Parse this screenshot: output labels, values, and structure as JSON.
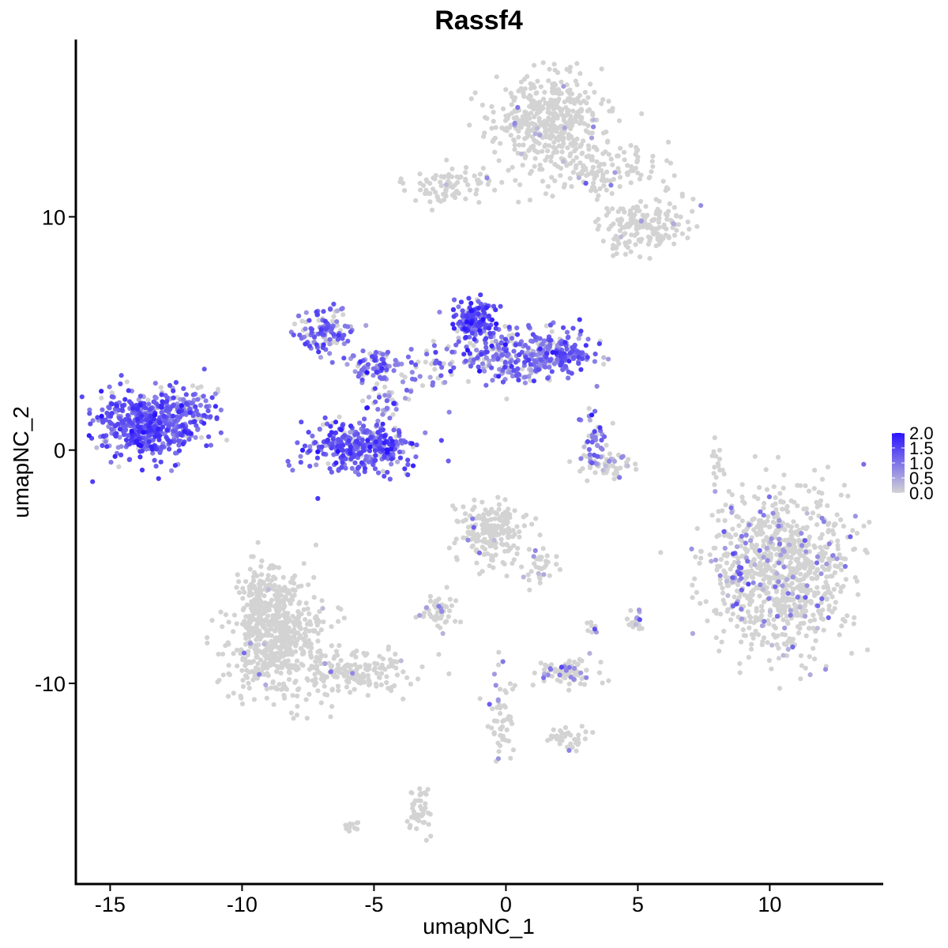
{
  "chart_data": {
    "type": "scatter",
    "title": "Rassf4",
    "xlabel": "umapNC_1",
    "ylabel": "umapNC_2",
    "xlim": [
      -16.3,
      14.3
    ],
    "ylim": [
      -18.6,
      17.6
    ],
    "xticks": [
      -15,
      -10,
      -5,
      0,
      5,
      10
    ],
    "xtick_labels": [
      "-15",
      "-10",
      "-5",
      "0",
      "5",
      "10"
    ],
    "yticks": [
      -10,
      0,
      10
    ],
    "ytick_labels": [
      "-10",
      "0",
      "10"
    ],
    "grid": false,
    "legend": {
      "position": "right",
      "min": 0,
      "max": 2,
      "ticks": [
        "0.0",
        "0.5",
        "1.0",
        "1.5",
        "2.0"
      ],
      "low_color": "#d3d3d3",
      "high_color": "#2a14ff"
    },
    "colors": {
      "low": "#d3d3d3",
      "high": "#2a14ff",
      "axis": "#000000"
    },
    "clusters": [
      {
        "x": -13.5,
        "y": 1.1,
        "sx": 1.0,
        "sy": 0.75,
        "n": 520,
        "expr_mean": 1.25,
        "expr_frac": 0.92
      },
      {
        "x": -12.1,
        "y": 1.8,
        "sx": 0.5,
        "sy": 0.6,
        "n": 60,
        "expr_mean": 1.0,
        "expr_frac": 0.85
      },
      {
        "x": -5.5,
        "y": 0.2,
        "sx": 1.0,
        "sy": 0.55,
        "n": 360,
        "expr_mean": 1.2,
        "expr_frac": 0.88
      },
      {
        "x": -6.9,
        "y": 5.2,
        "sx": 0.6,
        "sy": 0.45,
        "n": 120,
        "expr_mean": 1.0,
        "expr_frac": 0.8
      },
      {
        "x": -5.0,
        "y": 3.7,
        "sx": 0.5,
        "sy": 0.35,
        "n": 80,
        "expr_mean": 1.0,
        "expr_frac": 0.8
      },
      {
        "x": -4.6,
        "y": 2.0,
        "sx": 0.3,
        "sy": 0.5,
        "n": 35,
        "expr_mean": 1.0,
        "expr_frac": 0.8
      },
      {
        "x": -1.2,
        "y": 5.6,
        "sx": 0.35,
        "sy": 0.45,
        "n": 160,
        "expr_mean": 1.35,
        "expr_frac": 0.92
      },
      {
        "x": 0.4,
        "y": 4.1,
        "sx": 1.3,
        "sy": 0.6,
        "n": 280,
        "expr_mean": 1.0,
        "expr_frac": 0.78
      },
      {
        "x": 2.1,
        "y": 4.1,
        "sx": 0.5,
        "sy": 0.4,
        "n": 90,
        "expr_mean": 1.2,
        "expr_frac": 0.9
      },
      {
        "x": -3.0,
        "y": 3.5,
        "sx": 0.6,
        "sy": 0.8,
        "n": 45,
        "expr_mean": 0.9,
        "expr_frac": 0.6
      },
      {
        "x": 3.3,
        "y": 0.4,
        "sx": 0.25,
        "sy": 0.55,
        "n": 45,
        "expr_mean": 0.9,
        "expr_frac": 0.7
      },
      {
        "x": 3.8,
        "y": -0.6,
        "sx": 0.5,
        "sy": 0.3,
        "n": 55,
        "expr_mean": 0.3,
        "expr_frac": 0.25
      },
      {
        "x": 1.6,
        "y": 14.2,
        "sx": 1.0,
        "sy": 0.9,
        "n": 420,
        "expr_mean": 0.5,
        "expr_frac": 0.04
      },
      {
        "x": 3.5,
        "y": 12.1,
        "sx": 1.1,
        "sy": 0.6,
        "n": 150,
        "expr_mean": 0.5,
        "expr_frac": 0.03
      },
      {
        "x": -2.0,
        "y": 11.4,
        "sx": 0.9,
        "sy": 0.4,
        "n": 90,
        "expr_mean": 0.5,
        "expr_frac": 0.04
      },
      {
        "x": 5.2,
        "y": 9.6,
        "sx": 0.8,
        "sy": 0.6,
        "n": 180,
        "expr_mean": 0.5,
        "expr_frac": 0.03
      },
      {
        "x": 10.5,
        "y": -5.2,
        "sx": 1.3,
        "sy": 1.7,
        "n": 900,
        "expr_mean": 0.7,
        "expr_frac": 0.1
      },
      {
        "x": 8.6,
        "y": -5.5,
        "sx": 0.4,
        "sy": 0.6,
        "n": 40,
        "expr_mean": 0.9,
        "expr_frac": 0.6
      },
      {
        "x": -8.7,
        "y": -8.3,
        "sx": 1.0,
        "sy": 1.2,
        "n": 520,
        "expr_mean": 0.5,
        "expr_frac": 0.02
      },
      {
        "x": -9.1,
        "y": -6.2,
        "sx": 0.5,
        "sy": 0.7,
        "n": 150,
        "expr_mean": 0.5,
        "expr_frac": 0.02
      },
      {
        "x": -5.8,
        "y": -9.6,
        "sx": 1.0,
        "sy": 0.4,
        "n": 150,
        "expr_mean": 0.5,
        "expr_frac": 0.02
      },
      {
        "x": -0.5,
        "y": -3.6,
        "sx": 0.6,
        "sy": 0.7,
        "n": 190,
        "expr_mean": 0.6,
        "expr_frac": 0.05
      },
      {
        "x": 1.3,
        "y": -4.9,
        "sx": 0.3,
        "sy": 0.5,
        "n": 35,
        "expr_mean": 0.6,
        "expr_frac": 0.05
      },
      {
        "x": -2.6,
        "y": -6.9,
        "sx": 0.4,
        "sy": 0.35,
        "n": 50,
        "expr_mean": 0.8,
        "expr_frac": 0.18
      },
      {
        "x": 2.3,
        "y": -9.5,
        "sx": 0.5,
        "sy": 0.3,
        "n": 80,
        "expr_mean": 0.8,
        "expr_frac": 0.22
      },
      {
        "x": -0.2,
        "y": -11.3,
        "sx": 0.25,
        "sy": 0.9,
        "n": 55,
        "expr_mean": 0.7,
        "expr_frac": 0.06
      },
      {
        "x": 2.4,
        "y": -12.4,
        "sx": 0.35,
        "sy": 0.25,
        "n": 35,
        "expr_mean": 0.7,
        "expr_frac": 0.05
      },
      {
        "x": -3.3,
        "y": -15.3,
        "sx": 0.2,
        "sy": 0.6,
        "n": 45,
        "expr_mean": 0.8,
        "expr_frac": 0.05
      },
      {
        "x": 5.0,
        "y": -7.3,
        "sx": 0.2,
        "sy": 0.2,
        "n": 18,
        "expr_mean": 0.9,
        "expr_frac": 0.35
      },
      {
        "x": 3.3,
        "y": -7.6,
        "sx": 0.15,
        "sy": 0.15,
        "n": 8,
        "expr_mean": 0.9,
        "expr_frac": 0.25
      },
      {
        "x": 8.0,
        "y": -0.5,
        "sx": 0.15,
        "sy": 0.5,
        "n": 15,
        "expr_mean": 0.5,
        "expr_frac": 0.0
      },
      {
        "x": -5.8,
        "y": -16.2,
        "sx": 0.15,
        "sy": 0.15,
        "n": 10,
        "expr_mean": 0.5,
        "expr_frac": 0.0
      }
    ],
    "seed": 20240611
  }
}
